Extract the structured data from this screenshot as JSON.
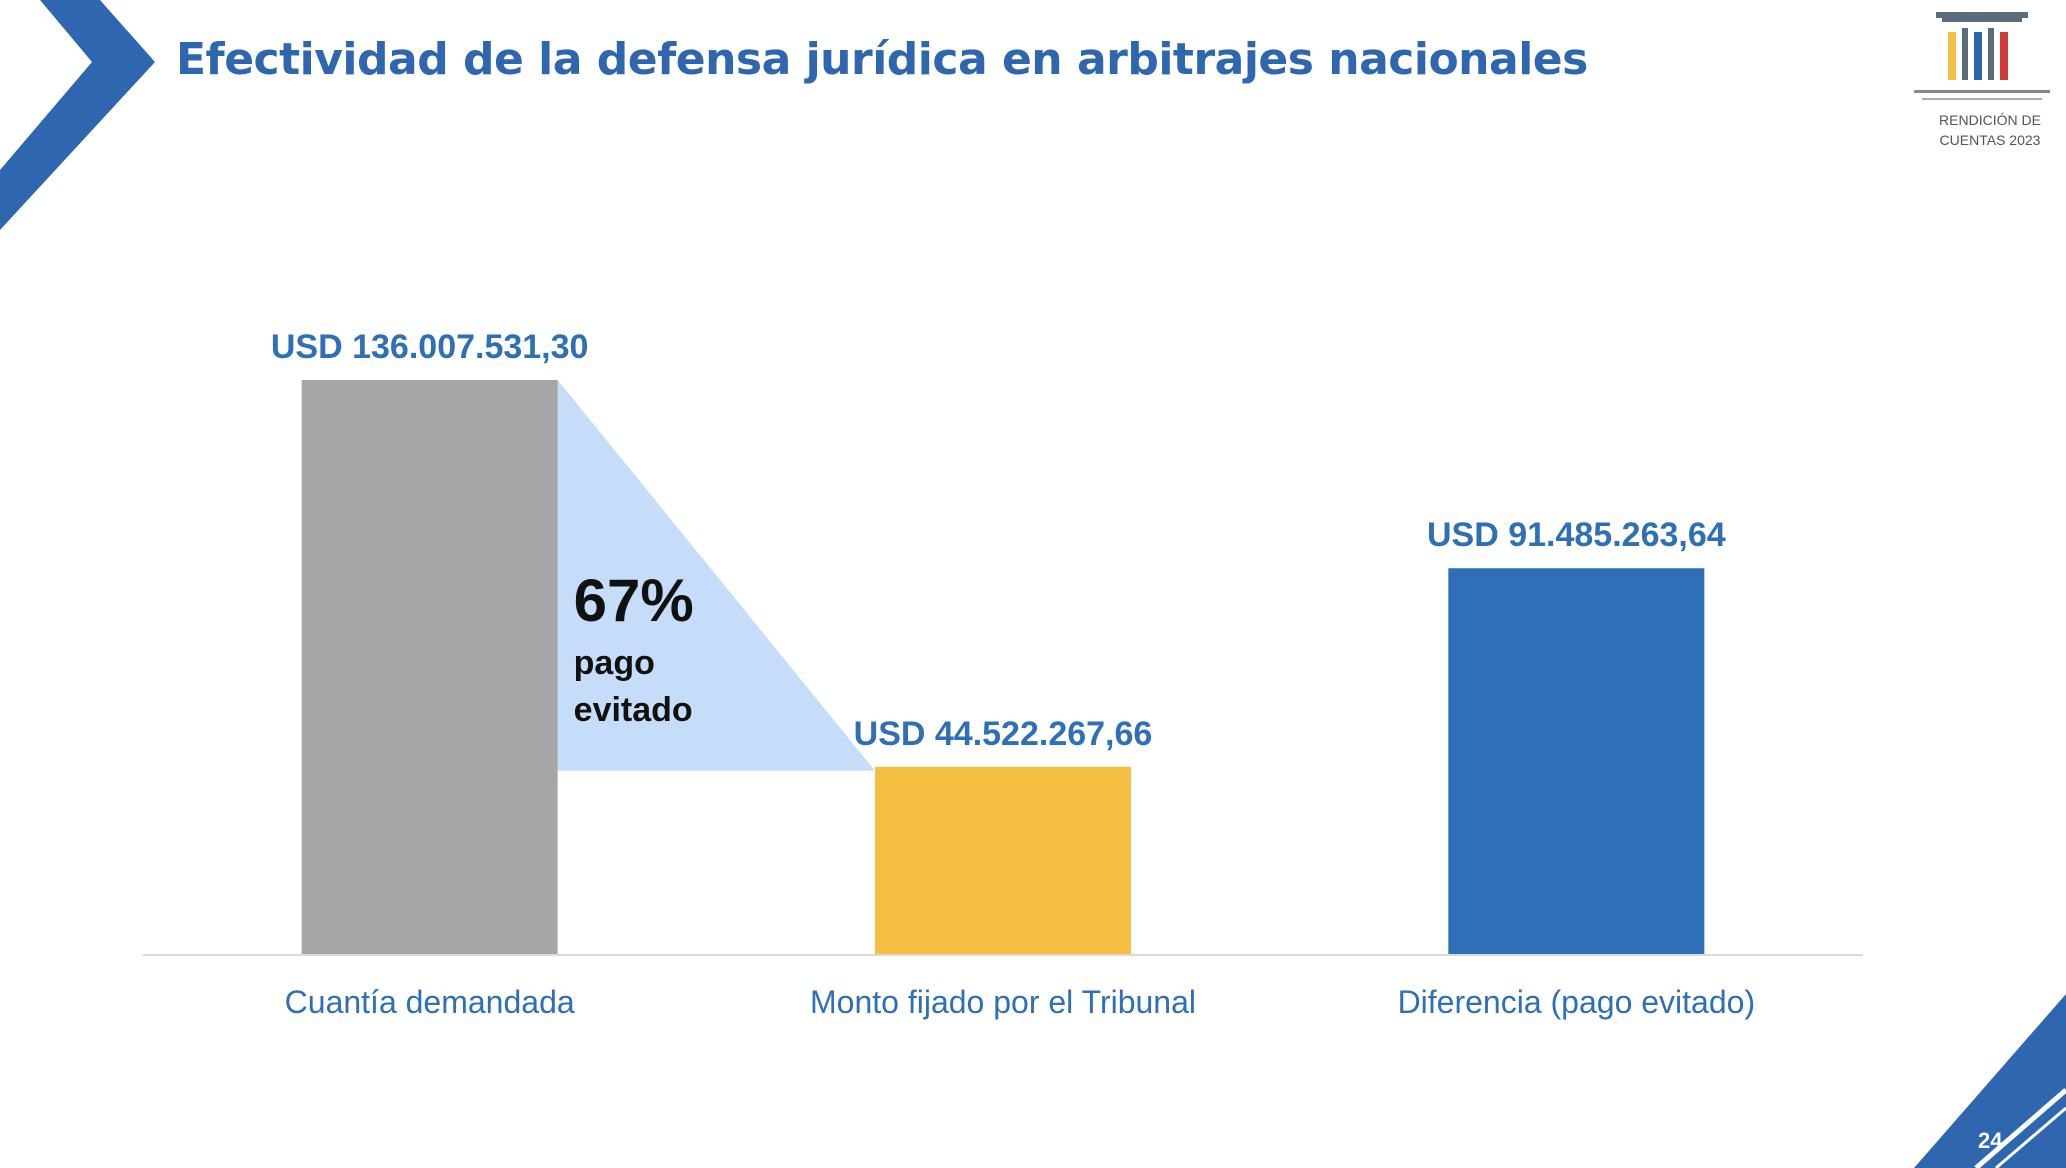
{
  "slide": {
    "title": "Efectividad de la defensa jurídica en arbitrajes nacionales",
    "logo_caption_line1": "RENDICIÓN DE",
    "logo_caption_line2": "CUENTAS 2023",
    "page_number": "24",
    "accent_color": "#2E66AF"
  },
  "chart_data": {
    "type": "bar",
    "title": "",
    "xlabel": "",
    "ylabel": "",
    "ylim": [
      0,
      136007531.3
    ],
    "grid": false,
    "legend": "none",
    "categories": [
      "Cuantía demandada",
      "Monto fijado por el Tribunal",
      "Diferencia (pago evitado)"
    ],
    "values": [
      136007531.3,
      44522267.66,
      91485263.64
    ],
    "value_labels": [
      "USD 136.007.531,30",
      "USD 44.522.267,66",
      "USD 91.485.263,64"
    ],
    "colors": [
      "#A6A6A6",
      "#F4BE42",
      "#2E6FB8"
    ],
    "annotation": {
      "percent": "67%",
      "line1": "pago",
      "line2": "evitado",
      "from_category": 0,
      "to_category": 1,
      "color": "#C5DDF8"
    }
  }
}
